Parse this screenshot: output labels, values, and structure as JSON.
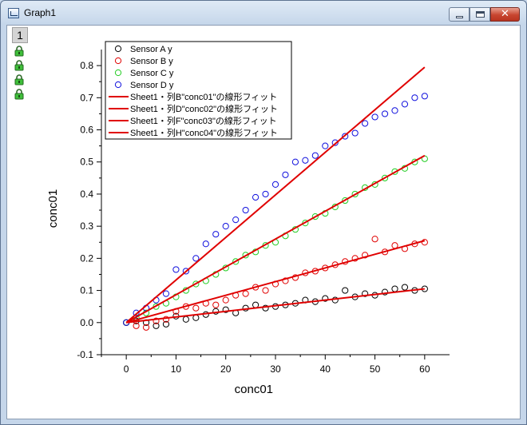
{
  "window": {
    "title": "Graph1",
    "layer_tab": "1",
    "close_glyph": "✕",
    "lock_icon_count": 4
  },
  "chart_data": {
    "type": "scatter",
    "xlabel": "conc01",
    "ylabel": "conc01",
    "xlim": [
      -5,
      65
    ],
    "ylim": [
      -0.1,
      0.85
    ],
    "xticks": [
      0,
      10,
      20,
      30,
      40,
      50,
      60
    ],
    "yticks": [
      -0.1,
      0.0,
      0.1,
      0.2,
      0.3,
      0.4,
      0.5,
      0.6,
      0.7,
      0.8
    ],
    "tick_labels_x": [
      "0",
      "10",
      "20",
      "30",
      "40",
      "50",
      "60"
    ],
    "tick_labels_y": [
      "-0.1",
      "0.0",
      "0.1",
      "0.2",
      "0.3",
      "0.4",
      "0.5",
      "0.6",
      "0.7",
      "0.8"
    ],
    "grid": false,
    "legend_position": "top-left",
    "x": [
      0,
      2,
      4,
      6,
      8,
      10,
      12,
      14,
      16,
      18,
      20,
      22,
      24,
      26,
      28,
      30,
      32,
      34,
      36,
      38,
      40,
      42,
      44,
      46,
      48,
      50,
      52,
      54,
      56,
      58,
      60
    ],
    "series": [
      {
        "name": "Sensor A y",
        "marker": "circle",
        "color": "#000000",
        "values": [
          0.0,
          0.005,
          0.0,
          -0.01,
          -0.005,
          0.02,
          0.01,
          0.015,
          0.025,
          0.035,
          0.04,
          0.03,
          0.045,
          0.055,
          0.045,
          0.05,
          0.055,
          0.06,
          0.07,
          0.065,
          0.075,
          0.07,
          0.1,
          0.08,
          0.09,
          0.085,
          0.095,
          0.105,
          0.11,
          0.1,
          0.105
        ]
      },
      {
        "name": "Sensor B y",
        "marker": "circle",
        "color": "#e00000",
        "values": [
          0.0,
          -0.01,
          -0.015,
          0.005,
          0.01,
          0.035,
          0.05,
          0.045,
          0.06,
          0.055,
          0.07,
          0.085,
          0.09,
          0.11,
          0.1,
          0.12,
          0.13,
          0.14,
          0.155,
          0.16,
          0.17,
          0.18,
          0.19,
          0.2,
          0.21,
          0.26,
          0.22,
          0.24,
          0.23,
          0.245,
          0.25
        ]
      },
      {
        "name": "Sensor C y",
        "marker": "circle",
        "color": "#22cc22",
        "values": [
          0.0,
          0.015,
          0.03,
          0.05,
          0.06,
          0.08,
          0.1,
          0.12,
          0.13,
          0.15,
          0.17,
          0.19,
          0.21,
          0.22,
          0.24,
          0.25,
          0.27,
          0.29,
          0.31,
          0.33,
          0.34,
          0.36,
          0.38,
          0.4,
          0.42,
          0.43,
          0.45,
          0.47,
          0.48,
          0.5,
          0.51
        ]
      },
      {
        "name": "Sensor D y",
        "marker": "circle",
        "color": "#1010dd",
        "values": [
          0.0,
          0.03,
          0.045,
          0.07,
          0.09,
          0.165,
          0.16,
          0.2,
          0.245,
          0.275,
          0.3,
          0.32,
          0.35,
          0.39,
          0.4,
          0.43,
          0.46,
          0.5,
          0.505,
          0.52,
          0.55,
          0.56,
          0.58,
          0.59,
          0.62,
          0.64,
          0.65,
          0.66,
          0.68,
          0.7,
          0.705
        ]
      }
    ],
    "fit_lines": [
      {
        "name": "Sheet1・列B\"conc01\"の線形フィット",
        "color": "#e00000",
        "x": [
          0,
          60
        ],
        "y": [
          0.0,
          0.105
        ]
      },
      {
        "name": "Sheet1・列D\"conc02\"の線形フィット",
        "color": "#e00000",
        "x": [
          0,
          60
        ],
        "y": [
          0.0,
          0.255
        ]
      },
      {
        "name": "Sheet1・列F\"conc03\"の線形フィット",
        "color": "#e00000",
        "x": [
          0,
          60
        ],
        "y": [
          0.0,
          0.52
        ]
      },
      {
        "name": "Sheet1・列H\"conc04\"の線形フィット",
        "color": "#e00000",
        "x": [
          0,
          60
        ],
        "y": [
          0.0,
          0.795
        ]
      }
    ]
  }
}
